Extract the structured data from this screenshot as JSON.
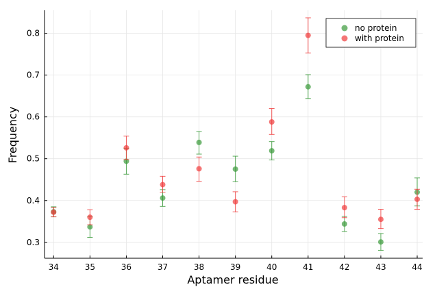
{
  "chart_data": {
    "type": "scatter",
    "title": "",
    "xlabel": "Aptamer residue",
    "ylabel": "Frequency",
    "xlim": [
      33.75,
      44.15
    ],
    "ylim": [
      0.262,
      0.855
    ],
    "xticks": [
      34,
      35,
      36,
      37,
      38,
      39,
      40,
      41,
      42,
      43,
      44
    ],
    "yticks": [
      0.3,
      0.4,
      0.5,
      0.6,
      0.7,
      0.8
    ],
    "ytick_labels": [
      "0.3",
      "0.4",
      "0.5",
      "0.6",
      "0.7",
      "0.8"
    ],
    "grid": true,
    "legend_position": "top-right",
    "series": [
      {
        "name": "no protein",
        "color": "#3a9a3a",
        "x": [
          34,
          35,
          36,
          37,
          38,
          39,
          40,
          41,
          42,
          43,
          44
        ],
        "y": [
          0.373,
          0.337,
          0.494,
          0.406,
          0.539,
          0.475,
          0.519,
          0.672,
          0.344,
          0.301,
          0.42
        ],
        "err_low": [
          0.012,
          0.025,
          0.031,
          0.02,
          0.028,
          0.03,
          0.022,
          0.028,
          0.018,
          0.02,
          0.033
        ],
        "err_high": [
          0.012,
          0.025,
          0.031,
          0.02,
          0.026,
          0.031,
          0.022,
          0.029,
          0.018,
          0.02,
          0.034
        ]
      },
      {
        "name": "with protein",
        "color": "#f03c3c",
        "x": [
          34,
          35,
          36,
          37,
          38,
          39,
          40,
          41,
          42,
          43,
          44
        ],
        "y": [
          0.372,
          0.36,
          0.526,
          0.438,
          0.476,
          0.397,
          0.588,
          0.795,
          0.383,
          0.355,
          0.403
        ],
        "err_low": [
          0.011,
          0.018,
          0.028,
          0.018,
          0.03,
          0.024,
          0.03,
          0.042,
          0.024,
          0.022,
          0.024
        ],
        "err_high": [
          0.011,
          0.018,
          0.028,
          0.02,
          0.028,
          0.024,
          0.032,
          0.042,
          0.026,
          0.024,
          0.024
        ]
      }
    ]
  }
}
